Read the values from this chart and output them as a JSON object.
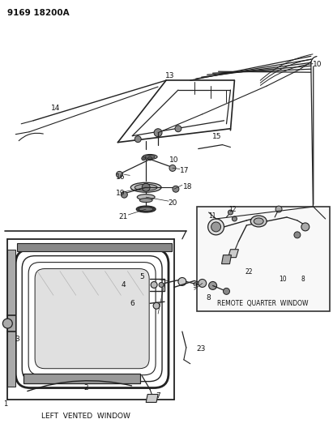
{
  "background_color": "#ffffff",
  "part_number_top": "9169 18200A",
  "label_left_vented": "LEFT  VENTED  WINDOW",
  "label_remote_quarter": "REMOTE  QUARTER  WINDOW",
  "fig_width": 4.11,
  "fig_height": 5.33,
  "dpi": 100,
  "line_color": "#222222",
  "text_color": "#111111"
}
